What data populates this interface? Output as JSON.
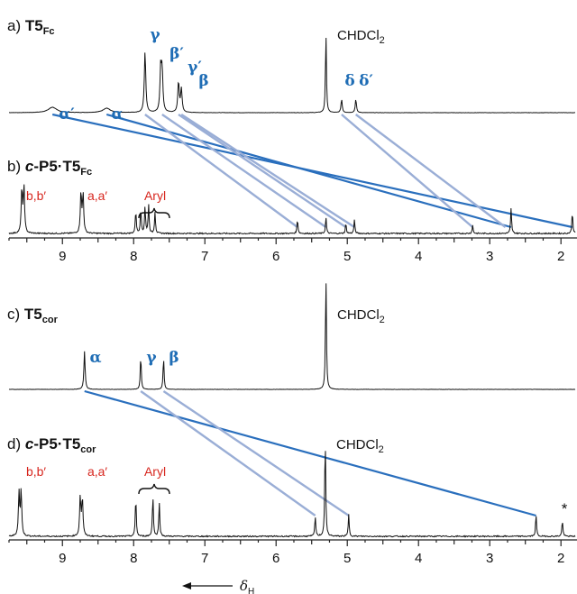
{
  "chart_data": [
    {
      "type": "line",
      "label": "a)",
      "title_main": "T5",
      "title_sub": "Fc",
      "x_range": [
        9.75,
        1.8
      ],
      "baseline": 0,
      "peaks": [
        {
          "x": 9.14,
          "h": 6,
          "w": 0.07
        },
        {
          "x": 8.38,
          "h": 5,
          "w": 0.06
        },
        {
          "x": 7.84,
          "h": 68,
          "w": 0.012
        },
        {
          "x": 7.62,
          "h": 48,
          "w": 0.012
        },
        {
          "x": 7.6,
          "h": 44,
          "w": 0.012
        },
        {
          "x": 7.37,
          "h": 34,
          "w": 0.012
        },
        {
          "x": 7.33,
          "h": 26,
          "w": 0.012
        },
        {
          "x": 5.3,
          "h": 88,
          "w": 0.008
        },
        {
          "x": 5.08,
          "h": 15,
          "w": 0.01
        },
        {
          "x": 4.88,
          "h": 15,
          "w": 0.01
        }
      ],
      "annotations": [
        {
          "text": "α′",
          "x": 9.14
        },
        {
          "text": "α",
          "x": 8.38
        },
        {
          "text": "γ",
          "x": 7.84
        },
        {
          "text": "β′",
          "x": 7.55
        },
        {
          "text": "γ′",
          "x": 7.36
        },
        {
          "text": "β",
          "x": 7.24
        },
        {
          "text": "δ",
          "x": 5.08
        },
        {
          "text": "δ′",
          "x": 4.85
        }
      ],
      "solvent": "CHDCl",
      "solvent_sub": "2"
    },
    {
      "type": "line",
      "label": "b)",
      "title_prefix": "c",
      "title_main": "-P5·T5",
      "title_sub": "Fc",
      "x_range": [
        9.75,
        1.8
      ],
      "baseline": 0,
      "peaks": [
        {
          "x": 9.57,
          "h": 50,
          "w": 0.01
        },
        {
          "x": 9.54,
          "h": 52,
          "w": 0.01
        },
        {
          "x": 8.74,
          "h": 46,
          "w": 0.01
        },
        {
          "x": 8.71,
          "h": 44,
          "w": 0.01
        },
        {
          "x": 7.97,
          "h": 26,
          "w": 0.008
        },
        {
          "x": 7.9,
          "h": 28,
          "w": 0.008
        },
        {
          "x": 7.84,
          "h": 30,
          "w": 0.008
        },
        {
          "x": 7.79,
          "h": 32,
          "w": 0.008
        },
        {
          "x": 7.7,
          "h": 24,
          "w": 0.008
        },
        {
          "x": 5.7,
          "h": 16,
          "w": 0.008
        },
        {
          "x": 5.3,
          "h": 18,
          "w": 0.008
        },
        {
          "x": 5.02,
          "h": 11,
          "w": 0.008
        },
        {
          "x": 4.9,
          "h": 15,
          "w": 0.008
        },
        {
          "x": 3.24,
          "h": 9,
          "w": 0.008
        },
        {
          "x": 2.7,
          "h": 28,
          "w": 0.008
        },
        {
          "x": 1.84,
          "h": 24,
          "w": 0.008
        }
      ],
      "labels": [
        {
          "text": "b,b′",
          "x": 9.55
        },
        {
          "text": "a,a′",
          "x": 8.73
        },
        {
          "text": "Aryl",
          "x": 7.82
        }
      ]
    },
    {
      "type": "line",
      "label": "c)",
      "title_main": "T5",
      "title_sub": "cor",
      "x_range": [
        9.75,
        1.8
      ],
      "baseline": 0,
      "peaks": [
        {
          "x": 8.69,
          "h": 42,
          "w": 0.01
        },
        {
          "x": 7.9,
          "h": 38,
          "w": 0.008
        },
        {
          "x": 7.58,
          "h": 36,
          "w": 0.008
        },
        {
          "x": 5.3,
          "h": 125,
          "w": 0.008
        }
      ],
      "annotations": [
        {
          "text": "α",
          "x": 8.75
        },
        {
          "text": "γ",
          "x": 7.9
        },
        {
          "text": "β",
          "x": 7.58
        }
      ],
      "solvent": "CHDCl",
      "solvent_sub": "2"
    },
    {
      "type": "line",
      "label": "d)",
      "title_prefix": "c",
      "title_main": "-P5·T5",
      "title_sub": "cor",
      "x_range": [
        9.75,
        1.8
      ],
      "baseline": 0,
      "peaks": [
        {
          "x": 9.61,
          "h": 48,
          "w": 0.01
        },
        {
          "x": 9.58,
          "h": 50,
          "w": 0.01
        },
        {
          "x": 8.75,
          "h": 44,
          "w": 0.01
        },
        {
          "x": 8.72,
          "h": 42,
          "w": 0.01
        },
        {
          "x": 7.97,
          "h": 44,
          "w": 0.008
        },
        {
          "x": 7.73,
          "h": 46,
          "w": 0.008
        },
        {
          "x": 7.64,
          "h": 38,
          "w": 0.008
        },
        {
          "x": 5.45,
          "h": 22,
          "w": 0.008
        },
        {
          "x": 5.31,
          "h": 110,
          "w": 0.008
        },
        {
          "x": 4.98,
          "h": 24,
          "w": 0.008
        },
        {
          "x": 2.35,
          "h": 24,
          "w": 0.008
        },
        {
          "x": 1.98,
          "h": 18,
          "w": 0.008
        }
      ],
      "labels": [
        {
          "text": "b,b′",
          "x": 9.55
        },
        {
          "text": "a,a′",
          "x": 8.73
        },
        {
          "text": "Aryl",
          "x": 7.82
        },
        {
          "text": "*",
          "x": 1.98
        }
      ],
      "solvent": "CHDCl",
      "solvent_sub": "2"
    }
  ],
  "axis": {
    "x_ticks": [
      "9",
      "8",
      "7",
      "6",
      "5",
      "4",
      "3",
      "2"
    ],
    "xlabel_arrow": "←",
    "xlabel": "δ",
    "xlabel_sub": "H"
  },
  "correlations": [
    {
      "panels": [
        0,
        1
      ],
      "from": 9.14,
      "to": 1.84,
      "style": "dark"
    },
    {
      "panels": [
        0,
        1
      ],
      "from": 8.38,
      "to": 2.7,
      "style": "dark"
    },
    {
      "panels": [
        0,
        1
      ],
      "from": 7.84,
      "to": 5.7,
      "style": "light"
    },
    {
      "panels": [
        0,
        1
      ],
      "from": 7.6,
      "to": 5.3,
      "style": "light"
    },
    {
      "panels": [
        0,
        1
      ],
      "from": 7.37,
      "to": 5.02,
      "style": "light"
    },
    {
      "panels": [
        0,
        1
      ],
      "from": 7.33,
      "to": 4.9,
      "style": "light"
    },
    {
      "panels": [
        0,
        1
      ],
      "from": 5.08,
      "to": 3.24,
      "style": "light"
    },
    {
      "panels": [
        0,
        1
      ],
      "from": 4.88,
      "to": 2.78,
      "style": "light"
    },
    {
      "panels": [
        2,
        3
      ],
      "from": 8.69,
      "to": 2.35,
      "style": "dark"
    },
    {
      "panels": [
        2,
        3
      ],
      "from": 7.9,
      "to": 5.45,
      "style": "light"
    },
    {
      "panels": [
        2,
        3
      ],
      "from": 7.58,
      "to": 4.98,
      "style": "light"
    }
  ]
}
